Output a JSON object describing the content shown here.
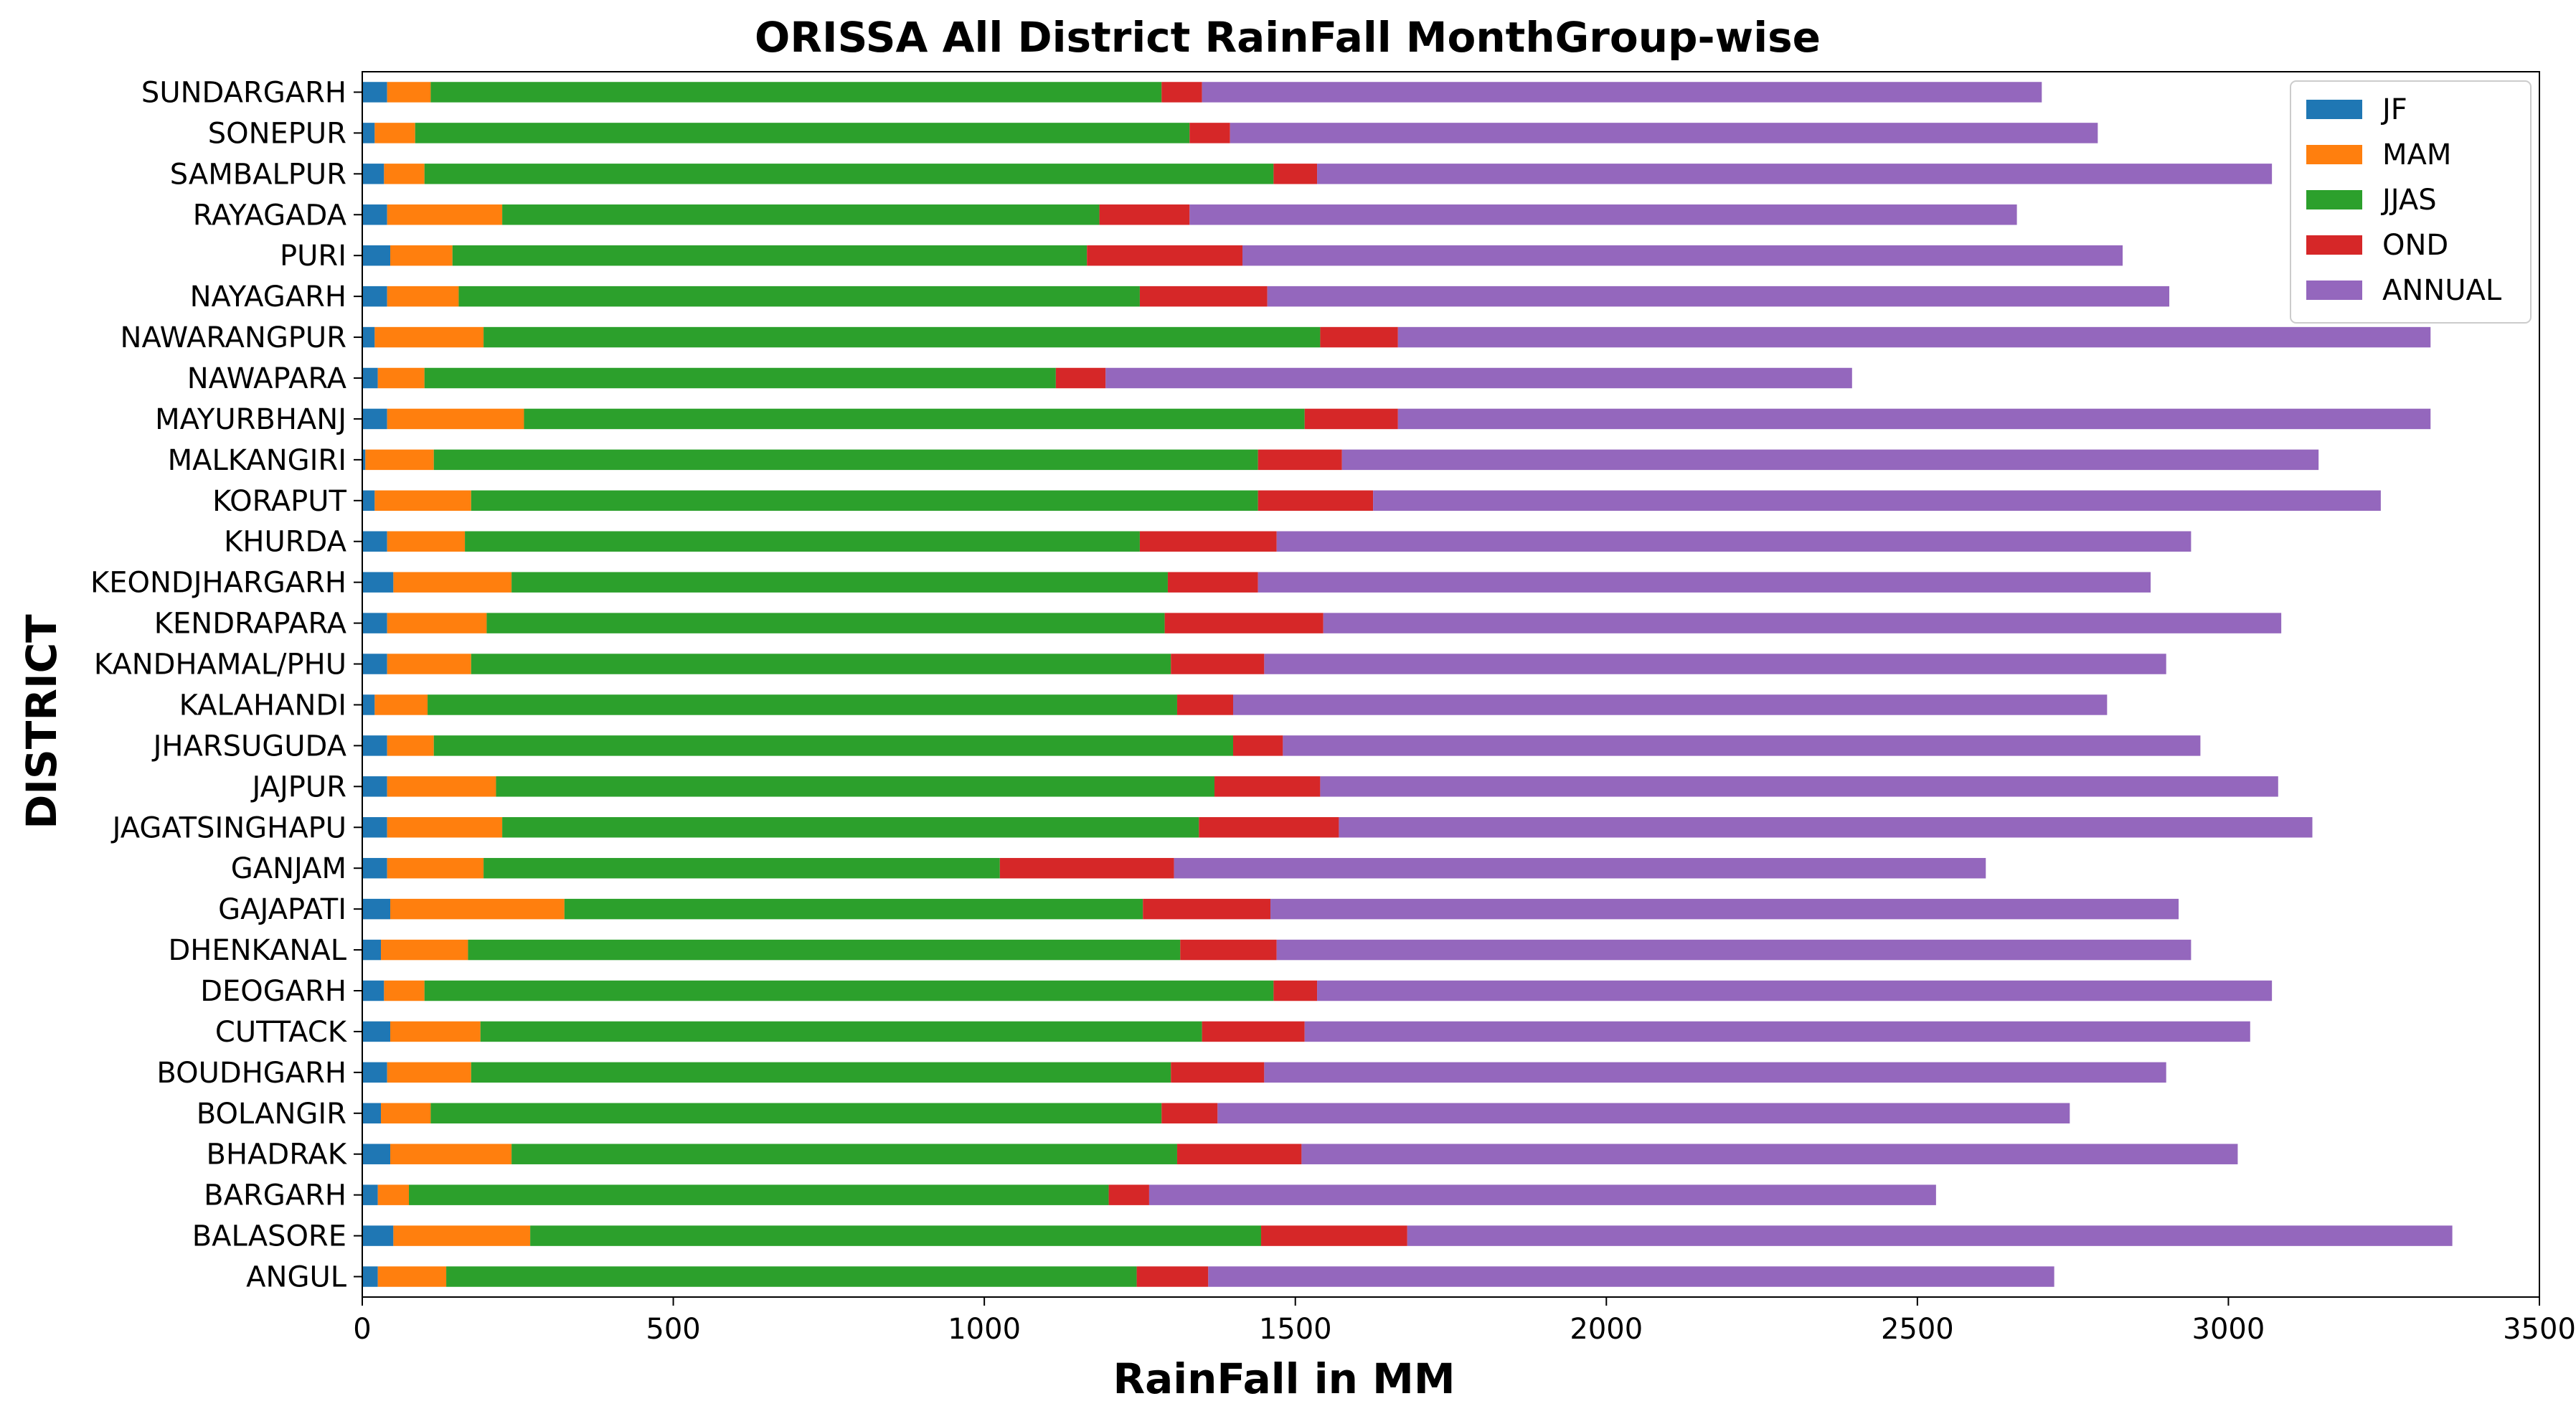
{
  "chart_data": {
    "type": "bar",
    "orientation": "horizontal",
    "stacked": true,
    "title": "ORISSA All District RainFall MonthGroup-wise",
    "xlabel": "RainFall in MM",
    "ylabel": "DISTRICT",
    "xlim": [
      0,
      3500
    ],
    "xticks": [
      0,
      500,
      1000,
      1500,
      2000,
      2500,
      3000,
      3500
    ],
    "grid": false,
    "legend_position": "top-right",
    "categories": [
      "ANGUL",
      "BALASORE",
      "BARGARH",
      "BHADRAK",
      "BOLANGIR",
      "BOUDHGARH",
      "CUTTACK",
      "DEOGARH",
      "DHENKANAL",
      "GAJAPATI",
      "GANJAM",
      "JAGATSINGHAPU",
      "JAJPUR",
      "JHARSUGUDA",
      "KALAHANDI",
      "KANDHAMAL/PHU",
      "KENDRAPARA",
      "KEONDJHARGARH",
      "KHURDA",
      "KORAPUT",
      "MALKANGIRI",
      "MAYURBHANJ",
      "NAWAPARA",
      "NAWARANGPUR",
      "NAYAGARH",
      "PURI",
      "RAYAGADA",
      "SAMBALPUR",
      "SONEPUR",
      "SUNDARGARH"
    ],
    "series": [
      {
        "name": "JF",
        "color": "#1f77b4",
        "values": [
          25,
          50,
          25,
          45,
          30,
          40,
          45,
          35,
          30,
          45,
          40,
          40,
          40,
          40,
          20,
          40,
          40,
          50,
          40,
          20,
          5,
          40,
          25,
          20,
          40,
          45,
          40,
          35,
          20,
          40
        ]
      },
      {
        "name": "MAM",
        "color": "#ff7f0e",
        "values": [
          110,
          220,
          50,
          195,
          80,
          135,
          145,
          65,
          140,
          280,
          155,
          185,
          175,
          75,
          85,
          135,
          160,
          190,
          125,
          155,
          110,
          220,
          75,
          175,
          115,
          100,
          185,
          65,
          65,
          70
        ]
      },
      {
        "name": "JJAS",
        "color": "#2ca02c",
        "values": [
          1110,
          1175,
          1125,
          1070,
          1175,
          1125,
          1160,
          1365,
          1145,
          930,
          830,
          1120,
          1155,
          1285,
          1205,
          1125,
          1090,
          1055,
          1085,
          1265,
          1325,
          1255,
          1015,
          1345,
          1095,
          1020,
          960,
          1365,
          1245,
          1175
        ]
      },
      {
        "name": "OND",
        "color": "#d62728",
        "values": [
          115,
          235,
          65,
          200,
          90,
          150,
          165,
          70,
          155,
          205,
          280,
          225,
          170,
          80,
          90,
          150,
          255,
          145,
          220,
          185,
          135,
          150,
          80,
          125,
          205,
          250,
          145,
          70,
          65,
          65
        ]
      },
      {
        "name": "ANNUAL",
        "color": "#9467bd",
        "values": [
          1360,
          1680,
          1265,
          1505,
          1370,
          1450,
          1520,
          1535,
          1470,
          1460,
          1305,
          1565,
          1540,
          1475,
          1405,
          1450,
          1540,
          1435,
          1470,
          1620,
          1570,
          1660,
          1200,
          1660,
          1450,
          1415,
          1330,
          1535,
          1395,
          1350
        ]
      }
    ]
  }
}
